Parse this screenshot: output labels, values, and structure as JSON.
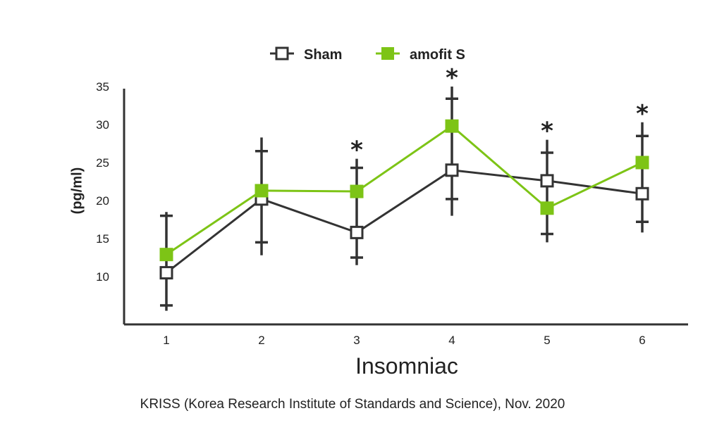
{
  "chart_data": {
    "type": "line",
    "categories": [
      "1",
      "2",
      "3",
      "4",
      "5",
      "6"
    ],
    "xlabel": "Insomniac",
    "ylabel": "(pg/ml)",
    "ylim": [
      5,
      35
    ],
    "yticks": [
      "10",
      "15",
      "20",
      "25",
      "30",
      "35"
    ],
    "legend_position": "top-center",
    "significance_markers": [
      "",
      "",
      "*",
      "*",
      "*",
      "*"
    ],
    "series": [
      {
        "name": "Sham",
        "color": "#333333",
        "marker": "hollow-square",
        "values": [
          10.5,
          20.2,
          15.8,
          24.0,
          22.6,
          20.9
        ],
        "err_upper": [
          18.5,
          28.3,
          25.5,
          35.0,
          28.0,
          30.3
        ],
        "err_lower": [
          5.5,
          12.8,
          11.5,
          18.0,
          14.5,
          15.8
        ],
        "cap_upper": [
          18.0,
          26.5,
          24.3,
          33.4,
          26.3,
          28.5
        ],
        "cap_lower": [
          6.2,
          14.5,
          12.5,
          20.2,
          15.6,
          17.2
        ]
      },
      {
        "name": "amofit S",
        "color": "#7dc416",
        "marker": "filled-square",
        "values": [
          12.9,
          21.3,
          21.2,
          29.8,
          19.0,
          25.0
        ]
      }
    ]
  },
  "footer": {
    "credit": "KRISS (Korea Research Institute of Standards and Science), Nov. 2020"
  }
}
